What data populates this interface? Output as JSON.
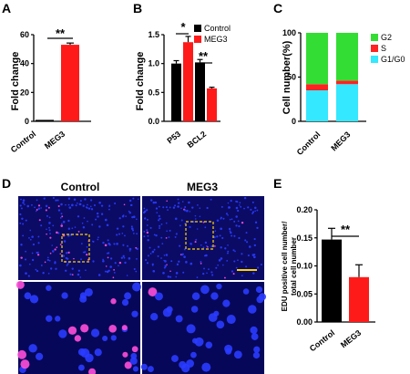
{
  "panels": {
    "A": "A",
    "B": "B",
    "C": "C",
    "D": "D",
    "E": "E"
  },
  "colors": {
    "control": "#000000",
    "meg3": "#ff1a1a",
    "g2": "#33dd33",
    "s": "#ff2222",
    "g1g0": "#33e8ff"
  },
  "chart_data": [
    {
      "id": "A",
      "type": "bar",
      "categories": [
        "Control",
        "MEG3"
      ],
      "values": [
        1,
        53
      ],
      "errors": [
        0.3,
        1.2
      ],
      "ylabel": "Fold change",
      "ylim": [
        0,
        60
      ],
      "yticks": [
        0,
        20,
        40,
        60
      ],
      "significance": "**",
      "colors": [
        "#000000",
        "#ff1a1a"
      ]
    },
    {
      "id": "B",
      "type": "bar",
      "categories": [
        "P53",
        "BCL2"
      ],
      "series": [
        {
          "name": "Control",
          "values": [
            1.0,
            1.02
          ],
          "errors": [
            0.05,
            0.05
          ]
        },
        {
          "name": "MEG3",
          "values": [
            1.37,
            0.57
          ],
          "errors": [
            0.1,
            0.02
          ]
        }
      ],
      "ylabel": "Fold change",
      "ylim": [
        0,
        1.5
      ],
      "yticks": [
        "0.0",
        "0.5",
        "1.0",
        "1.5"
      ],
      "significance": [
        "*",
        "**"
      ],
      "legend": "top-right"
    },
    {
      "id": "C",
      "type": "bar",
      "stacked": true,
      "categories": [
        "Control",
        "MEG3"
      ],
      "series": [
        {
          "name": "G1/G0",
          "values": [
            35,
            42
          ]
        },
        {
          "name": "S",
          "values": [
            7,
            4
          ]
        },
        {
          "name": "G2",
          "values": [
            58,
            54
          ]
        }
      ],
      "legend_order": [
        "G2",
        "S",
        "G1/G0"
      ],
      "ylabel": "Cell number(%)",
      "ylim": [
        0,
        100
      ],
      "yticks": [
        0,
        50,
        100
      ],
      "legend": "right"
    },
    {
      "id": "E",
      "type": "bar",
      "categories": [
        "Control",
        "MEG3"
      ],
      "values": [
        0.147,
        0.08
      ],
      "errors": [
        0.02,
        0.022
      ],
      "ylabel": "EDU positive cell number/ total cell number",
      "ylabel_lines": [
        "EDU positive cell number/",
        "total cell number"
      ],
      "ylim": [
        0,
        0.2
      ],
      "yticks": [
        "0.00",
        "0.05",
        "0.10",
        "0.15",
        "0.20"
      ],
      "significance": "**",
      "colors": [
        "#000000",
        "#ff1a1a"
      ]
    }
  ],
  "micrographs": {
    "left_label": "Control",
    "right_label": "MEG3"
  }
}
